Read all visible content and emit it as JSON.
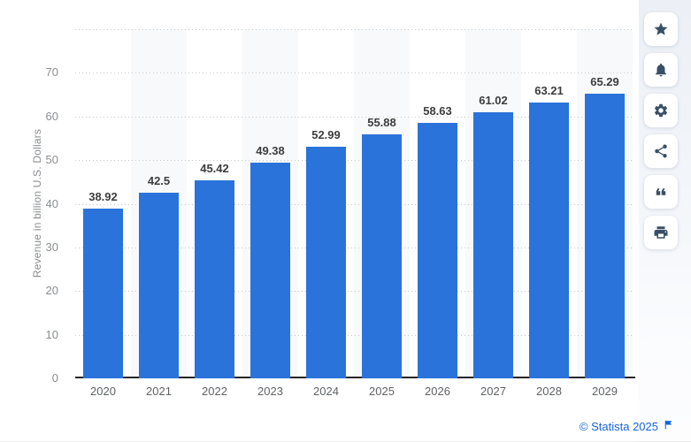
{
  "chart_data": {
    "type": "bar",
    "title": "",
    "categories": [
      "2020",
      "2021",
      "2022",
      "2023",
      "2024",
      "2025",
      "2026",
      "2027",
      "2028",
      "2029"
    ],
    "values": [
      38.92,
      42.5,
      45.42,
      49.38,
      52.99,
      55.88,
      58.63,
      61.02,
      63.21,
      65.29
    ],
    "value_labels": [
      "38.92",
      "42.5",
      "45.42",
      "49.38",
      "52.99",
      "55.88",
      "58.63",
      "61.02",
      "63.21",
      "65.29"
    ],
    "xlabel": "",
    "ylabel": "Revenue in billion U.S. Dollars",
    "ylim": [
      0,
      80
    ],
    "ytick_step": 10,
    "ytick_labels": [
      "0",
      "10",
      "20",
      "30",
      "40",
      "50",
      "60",
      "70"
    ],
    "grid": "horizontal-dotted",
    "legend": "none",
    "background_stripes": "alternating vertical column bands on odd categories"
  },
  "sidebar": {
    "buttons": [
      {
        "name": "favorite",
        "icon": "star-icon"
      },
      {
        "name": "notifications",
        "icon": "bell-icon"
      },
      {
        "name": "settings",
        "icon": "gear-icon"
      },
      {
        "name": "share",
        "icon": "share-icon"
      },
      {
        "name": "cite",
        "icon": "quote-icon"
      },
      {
        "name": "print",
        "icon": "printer-icon"
      }
    ]
  },
  "footer": {
    "copyright_label": "© Statista 2025",
    "flag_icon": "flag-icon"
  },
  "colors": {
    "bar_blue": "#2a73db",
    "column_stripe": "#f8f9fa",
    "gridline": "#c9c9c9",
    "axis": "#262626",
    "icon_navy": "#3a4f66",
    "link_blue": "#1565d8"
  }
}
